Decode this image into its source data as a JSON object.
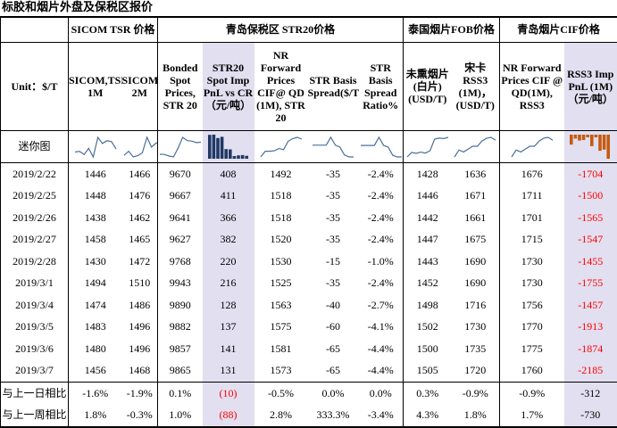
{
  "title": "标胶和烟片外盘及保税区报价",
  "groups": {
    "sicom": "SICOM TSR 价格",
    "qingdao": "青岛保税区 STR20价格",
    "thai": "泰国烟片FOB价格",
    "cif": "青岛烟片CIF价格"
  },
  "unit_label": "Unit：$/T",
  "columns": [
    "SICOM,TSR, 1M",
    "SICOM,TSR, 2M",
    "Bonded Spot Prices, STR 20",
    "STR20 Spot Imp PnL vs CR（元/吨）",
    "NR Forward Prices CIF@ QD (1M), STR 20",
    "STR Basis Spread($/T)",
    "STR Basis Spread Ratio%",
    "未熏烟片(白片)(USD/T)",
    "宋卡 RSS3 (1M)，(USD/T)",
    "NR Forward Prices CIF @ QD(1M), RSS3",
    "RSS3 Imp PnL (1M)（元/吨）"
  ],
  "spark_label": "迷你图",
  "rows": [
    {
      "date": "2019/2/22",
      "v": [
        "1446",
        "1466",
        "9670",
        "408",
        "1492",
        "-35",
        "-2.4%",
        "1428",
        "1636",
        "1676",
        "-1704"
      ]
    },
    {
      "date": "2019/2/25",
      "v": [
        "1448",
        "1476",
        "9667",
        "411",
        "1518",
        "-35",
        "-2.4%",
        "1446",
        "1671",
        "1711",
        "-1500"
      ]
    },
    {
      "date": "2019/2/26",
      "v": [
        "1438",
        "1462",
        "9641",
        "366",
        "1518",
        "-35",
        "-2.4%",
        "1442",
        "1661",
        "1701",
        "-1565"
      ]
    },
    {
      "date": "2019/2/27",
      "v": [
        "1458",
        "1465",
        "9627",
        "382",
        "1520",
        "-35",
        "-2.4%",
        "1447",
        "1675",
        "1715",
        "-1547"
      ]
    },
    {
      "date": "2019/2/28",
      "v": [
        "1430",
        "1472",
        "9768",
        "220",
        "1530",
        "-15",
        "-1.0%",
        "1443",
        "1690",
        "1730",
        "-1455"
      ]
    },
    {
      "date": "2019/3/1",
      "v": [
        "1494",
        "1510",
        "9943",
        "216",
        "1525",
        "-35",
        "-2.4%",
        "1452",
        "1690",
        "1730",
        "-1755"
      ]
    },
    {
      "date": "2019/3/4",
      "v": [
        "1474",
        "1486",
        "9890",
        "128",
        "1563",
        "-40",
        "-2.7%",
        "1498",
        "1716",
        "1756",
        "-1457"
      ]
    },
    {
      "date": "2019/3/5",
      "v": [
        "1483",
        "1496",
        "9882",
        "137",
        "1575",
        "-60",
        "-4.1%",
        "1502",
        "1730",
        "1770",
        "-1913"
      ]
    },
    {
      "date": "2019/3/6",
      "v": [
        "1480",
        "1496",
        "9857",
        "141",
        "1581",
        "-65",
        "-4.4%",
        "1500",
        "1735",
        "1775",
        "-1874"
      ]
    },
    {
      "date": "2019/3/7",
      "v": [
        "1456",
        "1468",
        "9865",
        "131",
        "1573",
        "-65",
        "-4.4%",
        "1505",
        "1720",
        "1760",
        "-2185"
      ]
    }
  ],
  "summary": [
    {
      "label": "与上一日相比",
      "v": [
        "-1.6%",
        "-1.9%",
        "0.1%",
        "(10)",
        "-0.5%",
        "0.0%",
        "0.0%",
        "0.3%",
        "-0.9%",
        "-0.9%",
        "-312"
      ]
    },
    {
      "label": "与上一周相比",
      "v": [
        "1.8%",
        "-0.3%",
        "1.0%",
        "(88)",
        "2.8%",
        "333.3%",
        "-3.4%",
        "4.3%",
        "1.8%",
        "1.7%",
        "-730"
      ]
    }
  ],
  "colors": {
    "highlight": "#e2dff0",
    "spark_line": "#4a6f9a",
    "spark_bar": "#1f3864",
    "spark_bar_neg": "#c55a11",
    "negative_text": "#ff0000"
  }
}
